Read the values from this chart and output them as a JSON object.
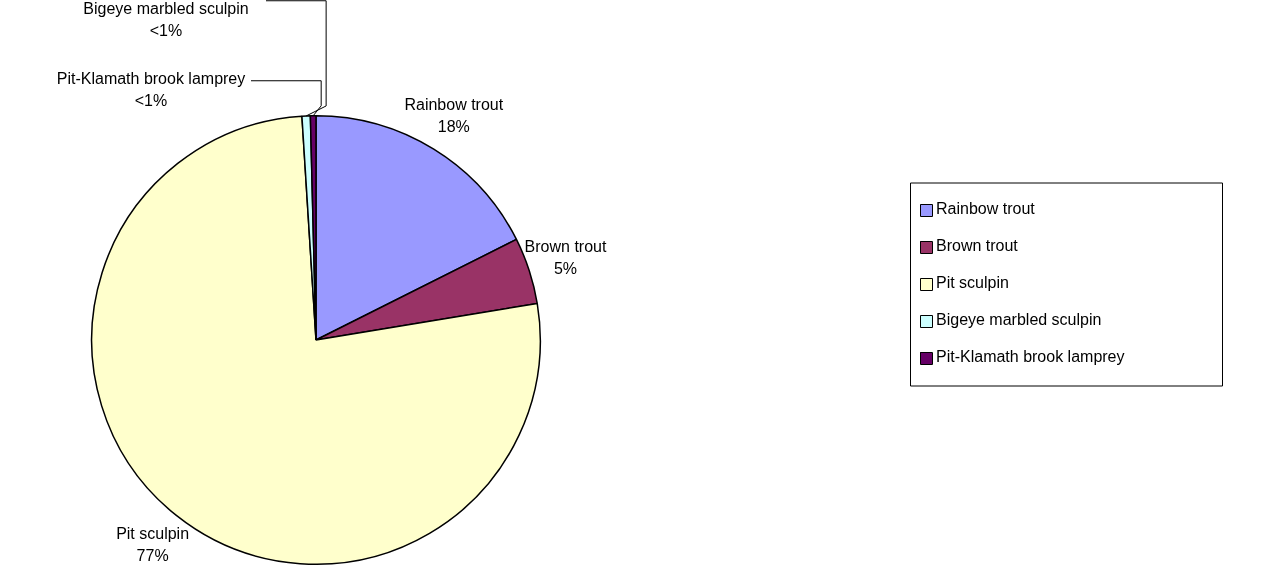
{
  "chart_data": {
    "type": "pie",
    "categories": [
      "Rainbow trout",
      "Brown trout",
      "Pit sculpin",
      "Bigeye marbled sculpin",
      "Pit-Klamath brook lamprey"
    ],
    "values": [
      17.6,
      4.8,
      76.6,
      0.6,
      0.4
    ],
    "value_labels": [
      "18%",
      "5%",
      "77%",
      "<1%",
      "<1%"
    ],
    "colors": [
      "#9999ff",
      "#993366",
      "#ffffcc",
      "#ccffff",
      "#660066"
    ],
    "legend": "right"
  }
}
